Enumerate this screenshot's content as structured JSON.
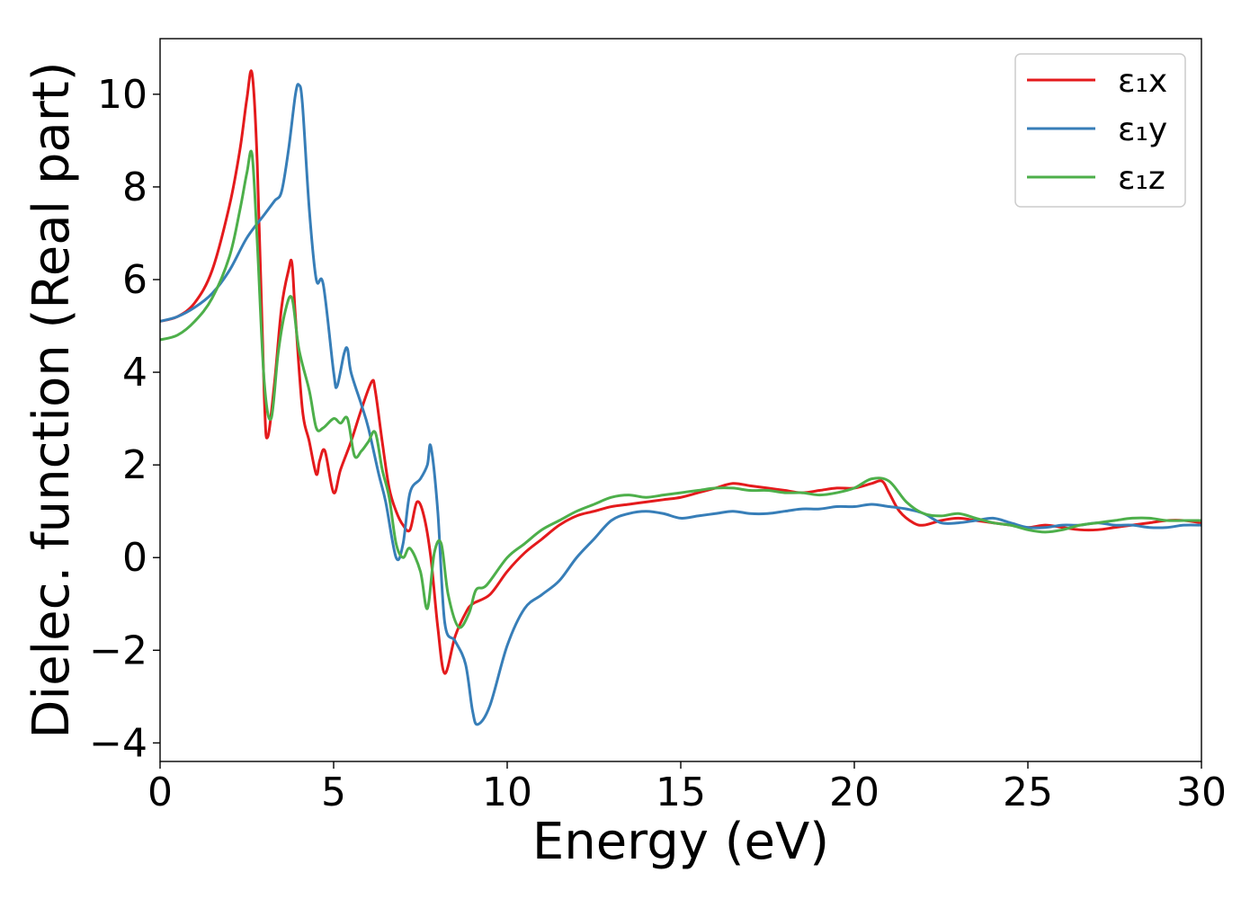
{
  "chart_data": {
    "type": "line",
    "xlabel": "Energy (eV)",
    "ylabel": "Dielec. function (Real part)",
    "xlim": [
      0,
      30
    ],
    "ylim": [
      -4.4,
      11.2
    ],
    "xticks": [
      0,
      5,
      10,
      15,
      20,
      25,
      30
    ],
    "yticks": [
      -4,
      -2,
      0,
      2,
      4,
      6,
      8,
      10
    ],
    "grid": false,
    "legend_position": "top-right",
    "series": [
      {
        "name": "ε₁x",
        "color": "#e41a1c",
        "x": [
          0,
          0.5,
          1.0,
          1.5,
          2.0,
          2.3,
          2.5,
          2.65,
          2.8,
          3.0,
          3.1,
          3.3,
          3.5,
          3.7,
          3.8,
          3.9,
          4.1,
          4.3,
          4.5,
          4.6,
          4.75,
          5.0,
          5.2,
          5.5,
          5.8,
          6.1,
          6.2,
          6.4,
          6.6,
          6.8,
          7.0,
          7.2,
          7.4,
          7.6,
          7.8,
          8.0,
          8.2,
          8.5,
          8.8,
          9.0,
          9.5,
          10.0,
          10.5,
          11.0,
          11.5,
          12.0,
          12.5,
          13.0,
          13.5,
          14.0,
          14.5,
          15.0,
          15.5,
          16.0,
          16.5,
          17.0,
          17.5,
          18.0,
          18.5,
          19.0,
          19.5,
          20.0,
          20.5,
          20.8,
          21.0,
          21.3,
          21.7,
          22.0,
          22.5,
          23.0,
          23.5,
          24.0,
          24.5,
          25.0,
          25.5,
          26.0,
          26.5,
          27.0,
          27.5,
          28.0,
          28.5,
          29.0,
          29.5,
          30.0
        ],
        "y": [
          5.1,
          5.2,
          5.5,
          6.2,
          7.6,
          8.8,
          9.9,
          10.45,
          8.5,
          3.5,
          2.6,
          3.8,
          5.4,
          6.2,
          6.35,
          5.2,
          3.2,
          2.5,
          1.8,
          2.1,
          2.3,
          1.4,
          1.9,
          2.5,
          3.2,
          3.8,
          3.6,
          2.5,
          1.5,
          1.0,
          0.7,
          0.6,
          1.2,
          0.9,
          0.0,
          -1.5,
          -2.5,
          -1.7,
          -1.2,
          -1.0,
          -0.8,
          -0.3,
          0.1,
          0.4,
          0.7,
          0.9,
          1.0,
          1.1,
          1.15,
          1.2,
          1.25,
          1.3,
          1.4,
          1.5,
          1.6,
          1.55,
          1.5,
          1.45,
          1.4,
          1.45,
          1.5,
          1.5,
          1.6,
          1.65,
          1.4,
          1.0,
          0.75,
          0.7,
          0.8,
          0.85,
          0.8,
          0.75,
          0.7,
          0.65,
          0.7,
          0.65,
          0.6,
          0.6,
          0.65,
          0.7,
          0.75,
          0.8,
          0.8,
          0.75
        ]
      },
      {
        "name": "ε₁y",
        "color": "#377eb8",
        "x": [
          0,
          0.5,
          1.0,
          1.5,
          2.0,
          2.5,
          3.0,
          3.3,
          3.5,
          3.7,
          3.9,
          4.0,
          4.1,
          4.3,
          4.5,
          4.7,
          5.0,
          5.1,
          5.3,
          5.4,
          5.5,
          5.8,
          6.0,
          6.3,
          6.5,
          6.8,
          7.0,
          7.2,
          7.5,
          7.7,
          7.8,
          8.0,
          8.2,
          8.5,
          8.8,
          9.0,
          9.15,
          9.5,
          10.0,
          10.5,
          11.0,
          11.5,
          12.0,
          12.5,
          13.0,
          13.5,
          14.0,
          14.5,
          15.0,
          15.5,
          16.0,
          16.5,
          17.0,
          17.5,
          18.0,
          18.5,
          19.0,
          19.5,
          20.0,
          20.5,
          21.0,
          21.5,
          22.0,
          22.5,
          23.0,
          23.5,
          24.0,
          24.5,
          25.0,
          25.5,
          26.0,
          26.5,
          27.0,
          27.5,
          28.0,
          28.5,
          29.0,
          29.5,
          30.0
        ],
        "y": [
          5.1,
          5.2,
          5.4,
          5.7,
          6.2,
          6.9,
          7.4,
          7.7,
          7.9,
          8.8,
          10.0,
          10.2,
          9.8,
          7.5,
          6.0,
          5.9,
          4.0,
          3.7,
          4.4,
          4.5,
          4.0,
          3.3,
          2.8,
          1.8,
          1.2,
          0.0,
          0.3,
          1.4,
          1.7,
          2.0,
          2.4,
          1.0,
          -1.4,
          -1.8,
          -2.3,
          -3.3,
          -3.6,
          -3.2,
          -1.9,
          -1.1,
          -0.8,
          -0.5,
          0.0,
          0.4,
          0.8,
          0.95,
          1.0,
          0.95,
          0.85,
          0.9,
          0.95,
          1.0,
          0.95,
          0.95,
          1.0,
          1.05,
          1.05,
          1.1,
          1.1,
          1.15,
          1.1,
          1.05,
          0.95,
          0.75,
          0.75,
          0.8,
          0.85,
          0.75,
          0.65,
          0.65,
          0.7,
          0.7,
          0.75,
          0.7,
          0.7,
          0.65,
          0.65,
          0.7,
          0.7
        ]
      },
      {
        "name": "ε₁z",
        "color": "#4daf4a",
        "x": [
          0,
          0.5,
          1.0,
          1.5,
          2.0,
          2.3,
          2.5,
          2.65,
          2.8,
          3.0,
          3.2,
          3.4,
          3.6,
          3.8,
          4.0,
          4.3,
          4.5,
          4.7,
          5.0,
          5.2,
          5.4,
          5.6,
          5.8,
          6.0,
          6.2,
          6.4,
          6.6,
          6.8,
          7.0,
          7.2,
          7.5,
          7.7,
          7.9,
          8.1,
          8.3,
          8.6,
          8.9,
          9.1,
          9.4,
          10.0,
          10.5,
          11.0,
          11.5,
          12.0,
          12.5,
          13.0,
          13.5,
          14.0,
          14.5,
          15.0,
          15.5,
          16.0,
          16.5,
          17.0,
          17.5,
          18.0,
          18.5,
          19.0,
          19.5,
          20.0,
          20.5,
          21.0,
          21.5,
          22.0,
          22.5,
          23.0,
          23.5,
          24.0,
          24.5,
          25.0,
          25.5,
          26.0,
          26.5,
          27.0,
          27.5,
          28.0,
          28.5,
          29.0,
          29.5,
          30.0
        ],
        "y": [
          4.7,
          4.8,
          5.1,
          5.6,
          6.5,
          7.5,
          8.3,
          8.7,
          6.8,
          3.8,
          3.0,
          4.4,
          5.3,
          5.6,
          4.5,
          3.6,
          2.8,
          2.8,
          3.0,
          2.9,
          3.0,
          2.2,
          2.3,
          2.5,
          2.7,
          1.9,
          1.3,
          0.3,
          0.0,
          0.2,
          -0.3,
          -1.1,
          0.1,
          0.3,
          -0.8,
          -1.5,
          -1.2,
          -0.7,
          -0.6,
          0.0,
          0.3,
          0.6,
          0.8,
          1.0,
          1.15,
          1.3,
          1.35,
          1.3,
          1.35,
          1.4,
          1.45,
          1.5,
          1.5,
          1.45,
          1.45,
          1.4,
          1.4,
          1.35,
          1.4,
          1.5,
          1.7,
          1.65,
          1.2,
          0.95,
          0.9,
          0.95,
          0.85,
          0.75,
          0.7,
          0.6,
          0.55,
          0.6,
          0.7,
          0.75,
          0.8,
          0.85,
          0.85,
          0.8,
          0.8,
          0.8
        ]
      }
    ]
  }
}
